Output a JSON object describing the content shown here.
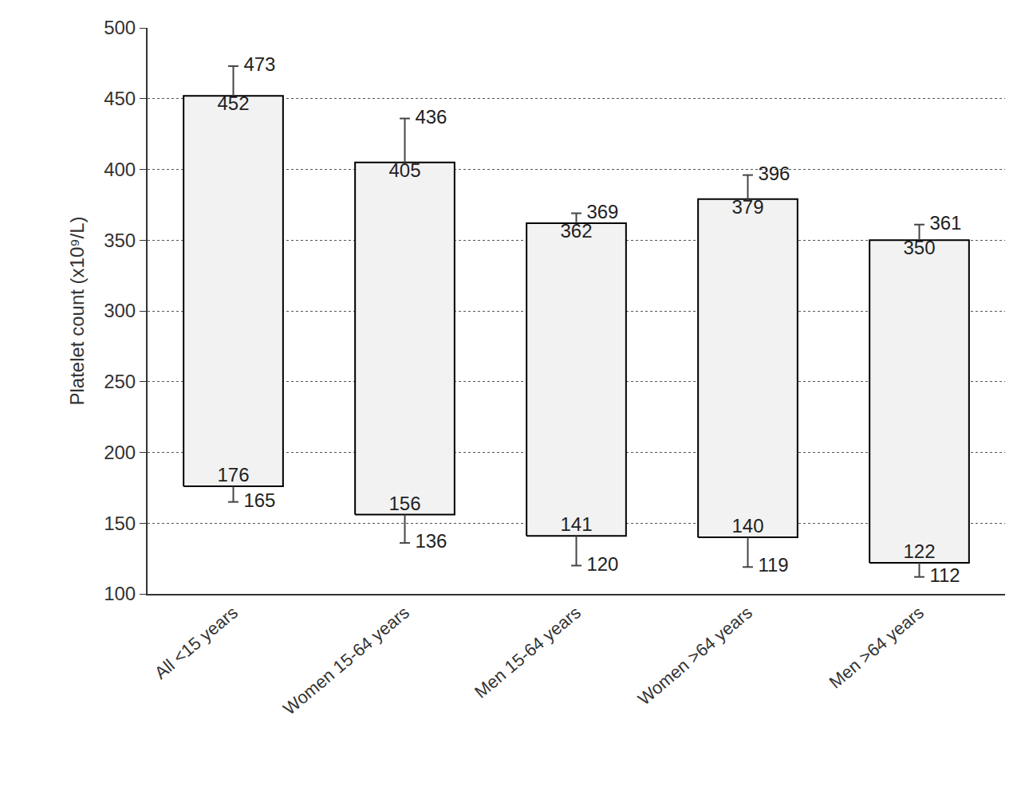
{
  "chart_data": {
    "type": "box",
    "y_label": "Platelet count (x10⁹/L)",
    "categories": [
      "All <15 years",
      "Women 15-64 years",
      "Men 15-64 years",
      "Women >64 years",
      "Men >64 years"
    ],
    "box_low": [
      176,
      156,
      141,
      140,
      122
    ],
    "box_high": [
      452,
      405,
      362,
      379,
      350
    ],
    "whisker_low": [
      165,
      136,
      120,
      119,
      112
    ],
    "whisker_high": [
      473,
      436,
      369,
      396,
      361
    ],
    "data_labels": true,
    "color": "#f2f2f2",
    "ylim": [
      100,
      500
    ],
    "yticks": [
      100,
      150,
      200,
      250,
      300,
      350,
      400,
      450,
      500
    ],
    "grid": true
  }
}
